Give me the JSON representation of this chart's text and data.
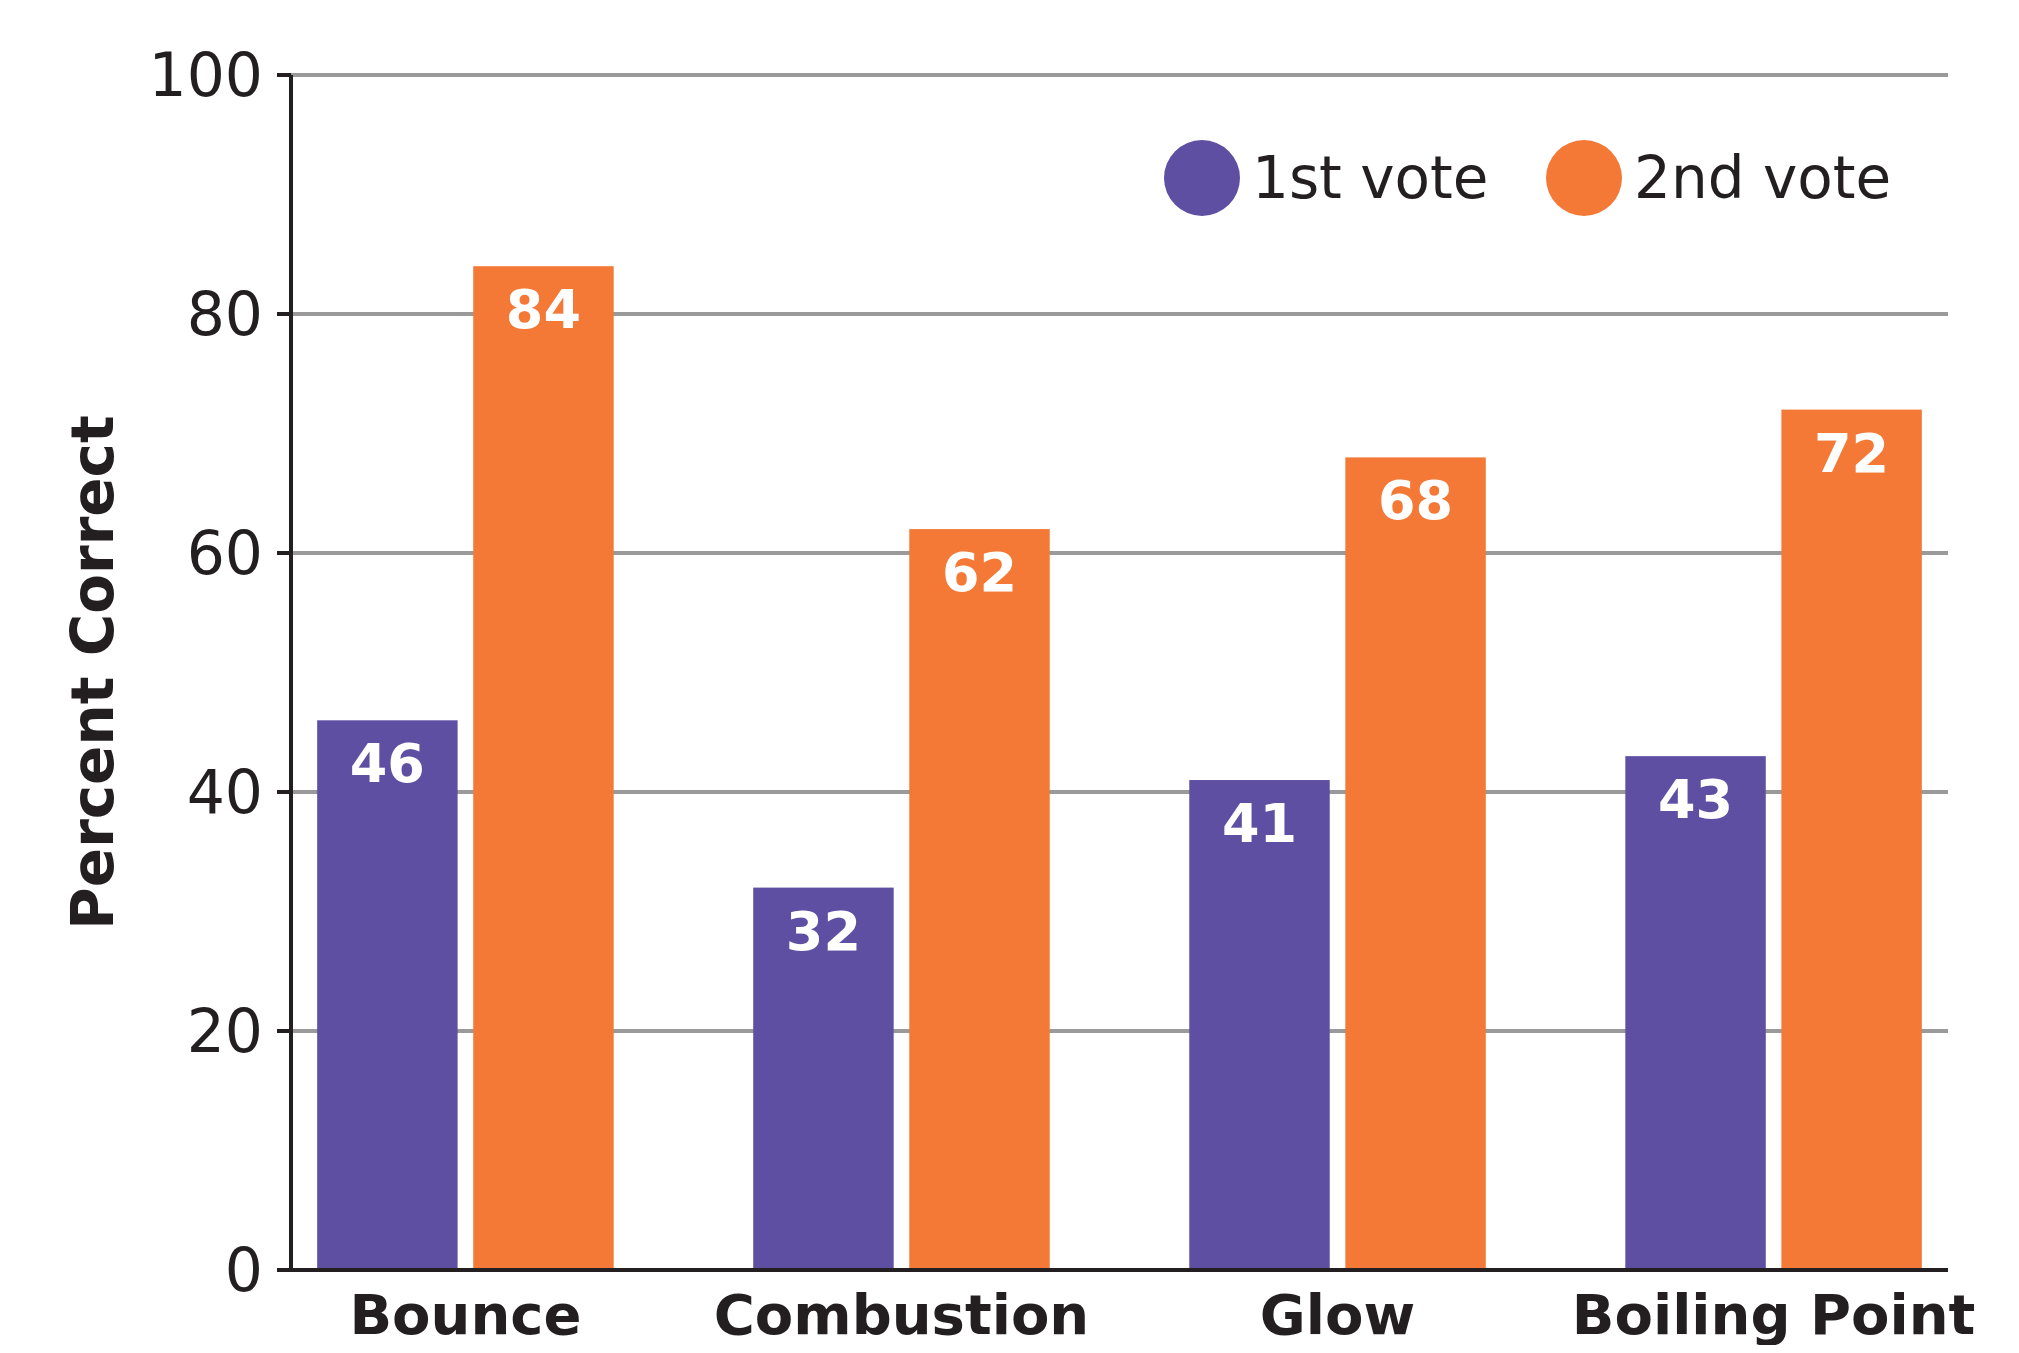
{
  "chart_data": {
    "type": "bar",
    "ylabel": "Percent Correct",
    "categories": [
      "Bounce",
      "Combustion",
      "Glow",
      "Boiling Point"
    ],
    "series": [
      {
        "name": "1st vote",
        "color": "#5e4fa2",
        "values": [
          46,
          32,
          41,
          43
        ]
      },
      {
        "name": "2nd vote",
        "color": "#f47936",
        "values": [
          84,
          62,
          68,
          72
        ]
      }
    ],
    "ylim": [
      0,
      100
    ],
    "yticks": [
      0,
      20,
      40,
      60,
      80,
      100
    ],
    "grid": "y",
    "legend": "top right",
    "data_labels": true
  }
}
